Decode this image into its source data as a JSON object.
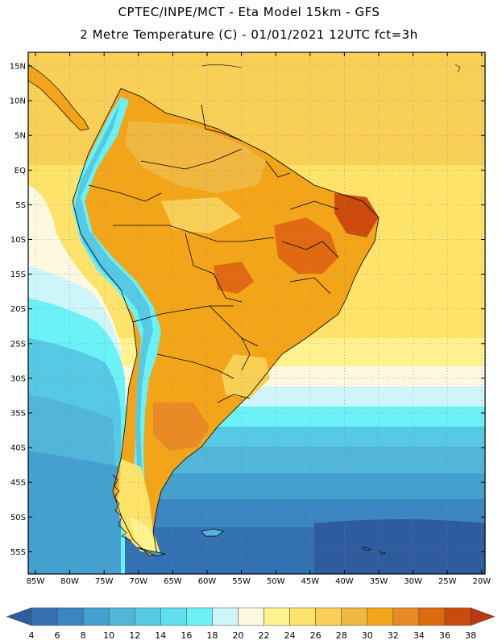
{
  "header": {
    "title_line1": "CPTEC/INPE/MCT -  Eta Model 15km - GFS",
    "title_line2": "2 Metre Temperature (C) - 01/01/2021 12UTC fct=3h"
  },
  "map": {
    "lat_labels": [
      "15N",
      "10N",
      "5N",
      "EQ",
      "5S",
      "10S",
      "15S",
      "20S",
      "25S",
      "30S",
      "35S",
      "40S",
      "45S",
      "50S",
      "55S"
    ],
    "lon_labels": [
      "85W",
      "80W",
      "75W",
      "70W",
      "65W",
      "60W",
      "55W",
      "50W",
      "45W",
      "40W",
      "35W",
      "30W",
      "25W",
      "20W"
    ]
  },
  "legend": {
    "labels": [
      "4",
      "6",
      "8",
      "10",
      "12",
      "14",
      "16",
      "18",
      "20",
      "22",
      "24",
      "26",
      "28",
      "30",
      "32",
      "34",
      "36",
      "38"
    ],
    "colors": [
      "#2f5c9e",
      "#3471b3",
      "#3a86c3",
      "#43a0cf",
      "#52b6da",
      "#56c9e4",
      "#5ee0ee",
      "#6af2f7",
      "#cdf5fa",
      "#fff8e0",
      "#fff390",
      "#fde36a",
      "#f8cf57",
      "#f0b840",
      "#f3a51a",
      "#ea8a24",
      "#df6a12",
      "#cc4a0c",
      "#b83812"
    ]
  }
}
